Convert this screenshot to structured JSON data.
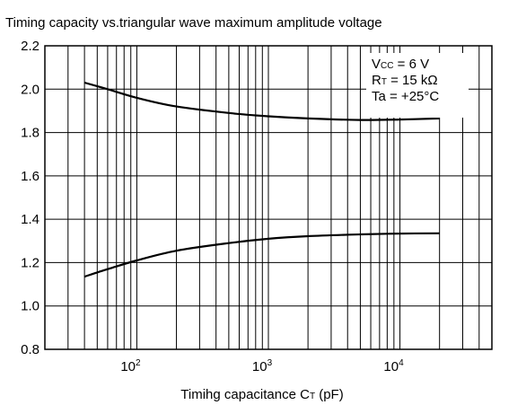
{
  "chart_data": {
    "type": "line",
    "title": "Timing capacity vs.triangular wave maximum amplitude voltage",
    "xlabel_parts": [
      "Timihg capacitance C",
      "T",
      " (pF)"
    ],
    "ylabel": "",
    "x_scale": "log",
    "xlim": [
      20,
      50000
    ],
    "ylim": [
      0.8,
      2.2
    ],
    "y_ticks": [
      "0.8",
      "1.0",
      "1.2",
      "1.4",
      "1.6",
      "1.8",
      "2.0",
      "2.2"
    ],
    "x_ticks": [
      {
        "base": "10",
        "exp": "2",
        "value": 100
      },
      {
        "base": "10",
        "exp": "3",
        "value": 1000
      },
      {
        "base": "10",
        "exp": "4",
        "value": 10000
      }
    ],
    "grid": true,
    "legend": "none",
    "annotation": {
      "position": "top-right",
      "lines": [
        {
          "parts": [
            "V",
            "CC",
            " = 6 V"
          ]
        },
        {
          "parts": [
            "R",
            "T",
            " = 15 kΩ"
          ]
        },
        {
          "parts": [
            "Ta = +25°C",
            "",
            ""
          ]
        }
      ]
    },
    "series": [
      {
        "x": [
          40,
          60,
          100,
          200,
          500,
          1000,
          2000,
          5000,
          10000,
          20000
        ],
        "y": [
          2.03,
          2.0,
          1.96,
          1.92,
          1.89,
          1.875,
          1.865,
          1.858,
          1.86,
          1.865
        ]
      },
      {
        "x": [
          40,
          60,
          100,
          200,
          500,
          1000,
          2000,
          5000,
          10000,
          20000
        ],
        "y": [
          1.135,
          1.17,
          1.21,
          1.255,
          1.29,
          1.31,
          1.322,
          1.33,
          1.334,
          1.335
        ]
      }
    ]
  }
}
